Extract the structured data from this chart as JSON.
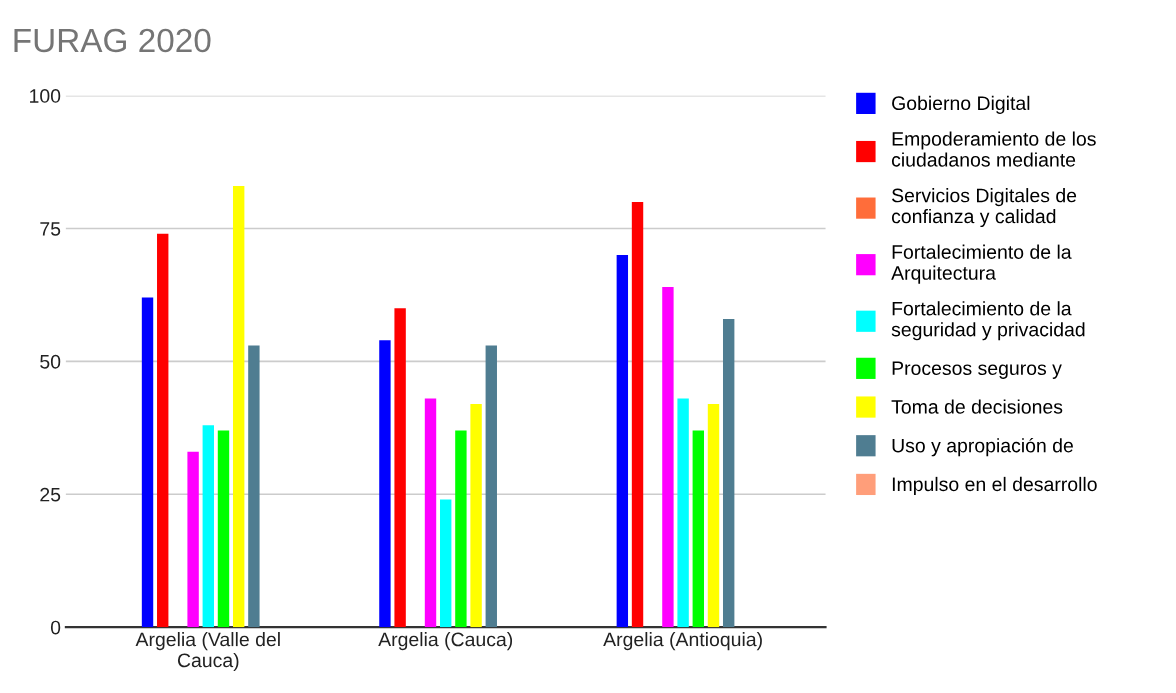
{
  "chart_data": {
    "type": "bar",
    "title": "FURAG 2020",
    "categories": [
      "Argelia (Valle del\nCauca)",
      "Argelia (Cauca)",
      "Argelia (Antioquia)"
    ],
    "series": [
      {
        "name": "Gobierno Digital",
        "color": "#0000ff",
        "values": [
          62,
          54,
          70
        ]
      },
      {
        "name": "Empoderamiento de los\nciudadanos mediante",
        "color": "#ff0000",
        "values": [
          74,
          60,
          80
        ]
      },
      {
        "name": "Servicios Digitales de\nconfianza y calidad",
        "color": "#ff6d3a",
        "values": [
          null,
          null,
          null
        ]
      },
      {
        "name": "Fortalecimiento de la\nArquitectura",
        "color": "#ff00ff",
        "values": [
          33,
          43,
          64
        ]
      },
      {
        "name": "Fortalecimiento de la\nseguridad y privacidad",
        "color": "#00ffff",
        "values": [
          38,
          24,
          43
        ]
      },
      {
        "name": "Procesos seguros y",
        "color": "#00ff00",
        "values": [
          37,
          37,
          37
        ]
      },
      {
        "name": "Toma de decisiones",
        "color": "#ffff00",
        "values": [
          83,
          42,
          42
        ]
      },
      {
        "name": "Uso y apropiación de",
        "color": "#4f7d91",
        "values": [
          53,
          53,
          58
        ]
      },
      {
        "name": "Impulso en el desarrollo",
        "color": "#ff9e7a",
        "values": [
          null,
          null,
          null
        ]
      }
    ],
    "ylim": [
      0,
      100
    ],
    "yticks": [
      0,
      25,
      50,
      75,
      100
    ],
    "grid": "y",
    "legend": "right"
  }
}
